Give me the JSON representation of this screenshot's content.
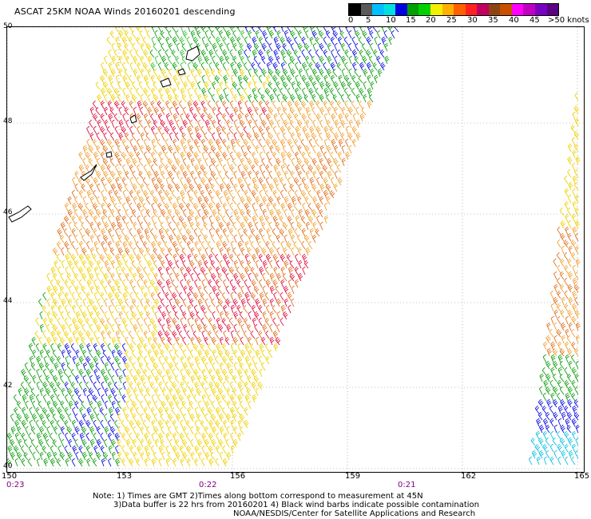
{
  "title": "ASCAT 25KM NOAA Winds 20160201 descending",
  "legend": {
    "colors": [
      "#000000",
      "#5a5a5a",
      "#00bfff",
      "#00e0e0",
      "#0000e0",
      "#00a000",
      "#00d000",
      "#f0f000",
      "#ffb000",
      "#ff6000",
      "#ff2020",
      "#c00060",
      "#8b4513",
      "#c85000",
      "#ff00ff",
      "#c000c0",
      "#7800c0",
      "#5a0080"
    ],
    "labels": [
      "0",
      "5",
      "10",
      "15",
      "20",
      "25",
      "30",
      "35",
      "40",
      "45",
      ">50 knots"
    ]
  },
  "axes": {
    "lat_labels": [
      "50",
      "48",
      "46",
      "44",
      "42",
      "40"
    ],
    "lon_labels": [
      "150",
      "153",
      "156",
      "159",
      "162",
      "165"
    ],
    "time_labels": [
      "0:23",
      "0:22",
      "0:21"
    ]
  },
  "swaths": [
    {
      "name": "main-swath"
    },
    {
      "name": "right-swath"
    }
  ],
  "notes": {
    "line1": "Note: 1) Times are GMT 2)Times along bottom correspond to measurement at 45N",
    "line2": "3)Data buffer is 22 hrs from 20160201 4) Black wind barbs indicate possible contamination",
    "line3": "NOAA/NESDIS/Center for Satellite Applications and Research"
  }
}
